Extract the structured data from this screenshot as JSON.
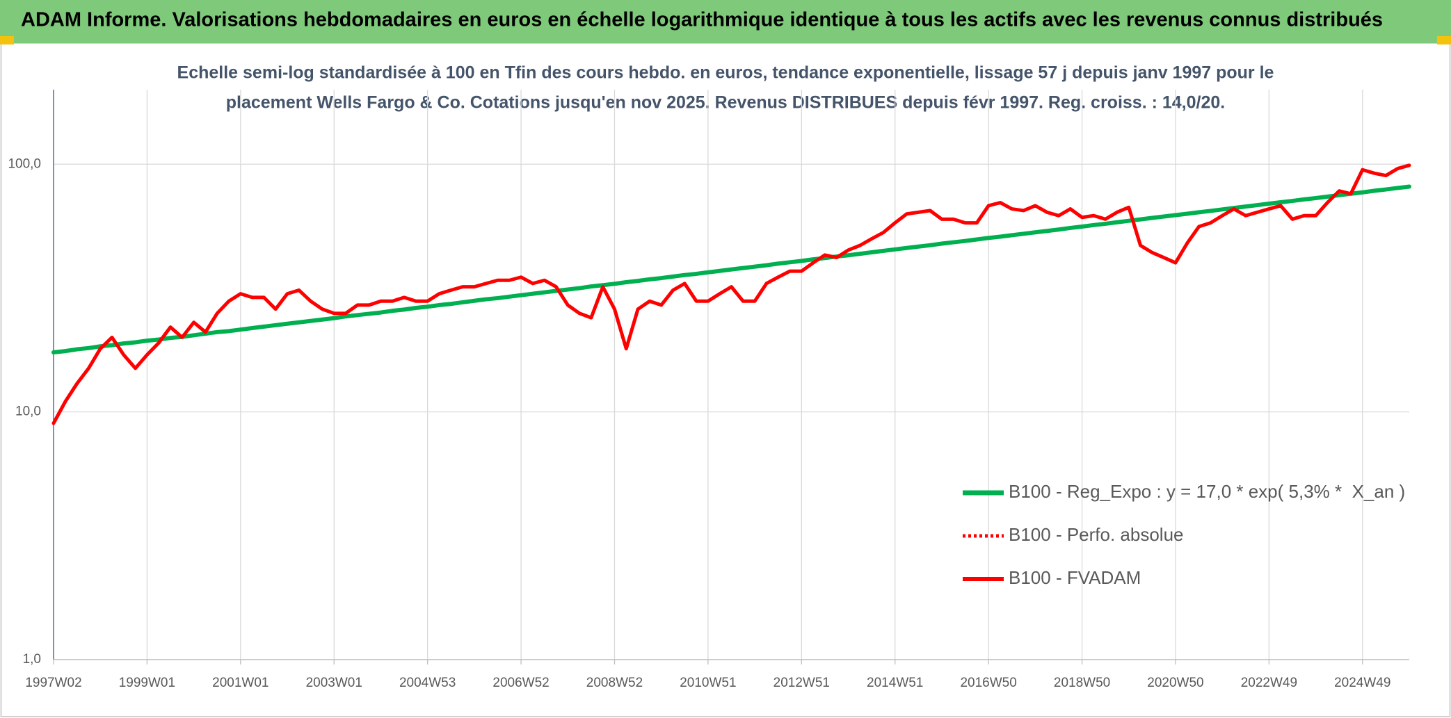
{
  "chart_data": {
    "type": "line",
    "title": "ADAM Informe. Valorisations hebdomadaires en euros en échelle logarithmique identique à tous les actifs avec les revenus connus distribués",
    "subtitle": [
      "Echelle semi-log standardisée à 100 en Tfin des cours hebdo. en euros, tendance exponentielle, lissage 57 j depuis janv 1997 pour le",
      "placement Wells Fargo & Co. Cotations jusqu'en nov 2025. Revenus DISTRIBUES depuis févr 1997. Reg. croiss. : 14,0/20."
    ],
    "log_scale": true,
    "grid": true,
    "legend_position": "lower right",
    "ylim": [
      1,
      200
    ],
    "yticks": [
      {
        "value": 1,
        "label": "1,0"
      },
      {
        "value": 10,
        "label": "10,0"
      },
      {
        "value": 100,
        "label": "100,0"
      }
    ],
    "categories": [
      "1997W02",
      null,
      null,
      null,
      null,
      null,
      null,
      null,
      "1999W01",
      null,
      null,
      null,
      null,
      null,
      null,
      null,
      "2001W01",
      null,
      null,
      null,
      null,
      null,
      null,
      null,
      "2003W01",
      null,
      null,
      null,
      null,
      null,
      null,
      null,
      "2004W53",
      null,
      null,
      null,
      null,
      null,
      null,
      null,
      "2006W52",
      null,
      null,
      null,
      null,
      null,
      null,
      null,
      "2008W52",
      null,
      null,
      null,
      null,
      null,
      null,
      null,
      "2010W51",
      null,
      null,
      null,
      null,
      null,
      null,
      null,
      "2012W51",
      null,
      null,
      null,
      null,
      null,
      null,
      null,
      "2014W51",
      null,
      null,
      null,
      null,
      null,
      null,
      null,
      "2016W50",
      null,
      null,
      null,
      null,
      null,
      null,
      null,
      "2018W50",
      null,
      null,
      null,
      null,
      null,
      null,
      null,
      "2020W50",
      null,
      null,
      null,
      null,
      null,
      null,
      null,
      "2022W49",
      null,
      null,
      null,
      null,
      null,
      null,
      null,
      "2024W49",
      null,
      null,
      null,
      null
    ],
    "series": [
      {
        "name": "B100 - Reg_Expo : y = 17,0 * exp( 5,3% *  X_an )",
        "color": "#00b050",
        "width": 6,
        "dashed": false,
        "values": [
          17.4,
          17.6,
          17.9,
          18.1,
          18.4,
          18.6,
          18.9,
          19.1,
          19.4,
          19.6,
          19.9,
          20.1,
          20.4,
          20.7,
          21.0,
          21.2,
          21.5,
          21.8,
          22.1,
          22.4,
          22.7,
          23.0,
          23.3,
          23.6,
          23.9,
          24.3,
          24.6,
          24.9,
          25.2,
          25.6,
          25.9,
          26.3,
          26.6,
          27.0,
          27.3,
          27.7,
          28.1,
          28.5,
          28.8,
          29.2,
          29.6,
          30.0,
          30.4,
          30.8,
          31.2,
          31.6,
          32.1,
          32.5,
          32.9,
          33.4,
          33.8,
          34.3,
          34.7,
          35.2,
          35.7,
          36.1,
          36.6,
          37.1,
          37.6,
          38.1,
          38.6,
          39.1,
          39.7,
          40.2,
          40.7,
          41.3,
          41.8,
          42.4,
          42.9,
          43.5,
          44.1,
          44.7,
          45.3,
          45.9,
          46.5,
          47.1,
          47.8,
          48.4,
          49.0,
          49.7,
          50.4,
          51.0,
          51.7,
          52.4,
          53.1,
          53.8,
          54.5,
          55.3,
          56.0,
          56.8,
          57.5,
          58.3,
          59.1,
          59.9,
          60.7,
          61.5,
          62.3,
          63.1,
          64.0,
          64.8,
          65.7,
          66.6,
          67.5,
          68.4,
          69.3,
          70.2,
          71.1,
          72.1,
          73.0,
          74.0,
          75.0,
          76.0,
          77.0,
          78.1,
          79.1,
          80.2,
          81.2
        ]
      },
      {
        "name": "B100 - Perfo. absolue",
        "color": "#ff0000",
        "width": 4,
        "dashed": true,
        "values": [
          9,
          11,
          13,
          15,
          18,
          20,
          17,
          15,
          17,
          19,
          22,
          20,
          23,
          21,
          25,
          28,
          30,
          29,
          29,
          26,
          30,
          31,
          28,
          26,
          25,
          25,
          27,
          27,
          28,
          28,
          29,
          28,
          28,
          30,
          31,
          32,
          32,
          33,
          34,
          34,
          35,
          33,
          34,
          32,
          27,
          25,
          24,
          32,
          26,
          18,
          26,
          28,
          27,
          31,
          33,
          28,
          28,
          30,
          32,
          28,
          28,
          33,
          35,
          37,
          37,
          40,
          43,
          42,
          45,
          47,
          50,
          53,
          58,
          63,
          64,
          65,
          60,
          60,
          58,
          58,
          68,
          70,
          66,
          65,
          68,
          64,
          62,
          66,
          61,
          62,
          60,
          64,
          67,
          47,
          44,
          42,
          40,
          48,
          56,
          58,
          62,
          66,
          62,
          64,
          66,
          68,
          60,
          62,
          62,
          70,
          78,
          76,
          95,
          92,
          90,
          96,
          99
        ]
      },
      {
        "name": "B100 - FVADAM",
        "color": "#ff0000",
        "width": 5,
        "dashed": false,
        "values": [
          9,
          11,
          13,
          15,
          18,
          20,
          17,
          15,
          17,
          19,
          22,
          20,
          23,
          21,
          25,
          28,
          30,
          29,
          29,
          26,
          30,
          31,
          28,
          26,
          25,
          25,
          27,
          27,
          28,
          28,
          29,
          28,
          28,
          30,
          31,
          32,
          32,
          33,
          34,
          34,
          35,
          33,
          34,
          32,
          27,
          25,
          24,
          32,
          26,
          18,
          26,
          28,
          27,
          31,
          33,
          28,
          28,
          30,
          32,
          28,
          28,
          33,
          35,
          37,
          37,
          40,
          43,
          42,
          45,
          47,
          50,
          53,
          58,
          63,
          64,
          65,
          60,
          60,
          58,
          58,
          68,
          70,
          66,
          65,
          68,
          64,
          62,
          66,
          61,
          62,
          60,
          64,
          67,
          47,
          44,
          42,
          40,
          48,
          56,
          58,
          62,
          66,
          62,
          64,
          66,
          68,
          60,
          62,
          62,
          70,
          78,
          76,
          95,
          92,
          90,
          96,
          99
        ]
      }
    ]
  }
}
